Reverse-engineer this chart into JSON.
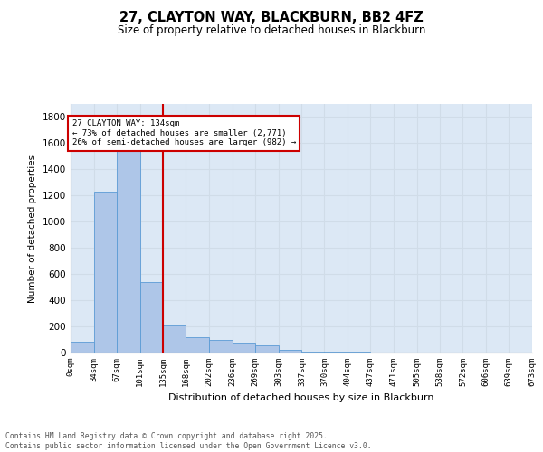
{
  "title_line1": "27, CLAYTON WAY, BLACKBURN, BB2 4FZ",
  "title_line2": "Size of property relative to detached houses in Blackburn",
  "xlabel": "Distribution of detached houses by size in Blackburn",
  "ylabel": "Number of detached properties",
  "annotation_title": "27 CLAYTON WAY: 134sqm",
  "annotation_line1": "← 73% of detached houses are smaller (2,771)",
  "annotation_line2": "26% of semi-detached houses are larger (982) →",
  "property_size": 134,
  "bin_edges": [
    0,
    34,
    67,
    101,
    135,
    168,
    202,
    236,
    269,
    303,
    337,
    370,
    404,
    437,
    471,
    505,
    538,
    572,
    606,
    639,
    673
  ],
  "bin_labels": [
    "0sqm",
    "34sqm",
    "67sqm",
    "101sqm",
    "135sqm",
    "168sqm",
    "202sqm",
    "236sqm",
    "269sqm",
    "303sqm",
    "337sqm",
    "370sqm",
    "404sqm",
    "437sqm",
    "471sqm",
    "505sqm",
    "538sqm",
    "572sqm",
    "606sqm",
    "639sqm",
    "673sqm"
  ],
  "bar_heights": [
    85,
    1230,
    1680,
    540,
    210,
    115,
    95,
    75,
    55,
    20,
    10,
    5,
    4,
    3,
    2,
    1,
    1,
    0,
    0,
    0
  ],
  "bar_color": "#aec6e8",
  "bar_edge_color": "#5b9bd5",
  "red_line_color": "#cc0000",
  "annotation_box_color": "#cc0000",
  "grid_color": "#d0dce8",
  "background_color": "#dce8f5",
  "ylim": [
    0,
    1900
  ],
  "yticks": [
    0,
    200,
    400,
    600,
    800,
    1000,
    1200,
    1400,
    1600,
    1800
  ],
  "footer_line1": "Contains HM Land Registry data © Crown copyright and database right 2025.",
  "footer_line2": "Contains public sector information licensed under the Open Government Licence v3.0."
}
